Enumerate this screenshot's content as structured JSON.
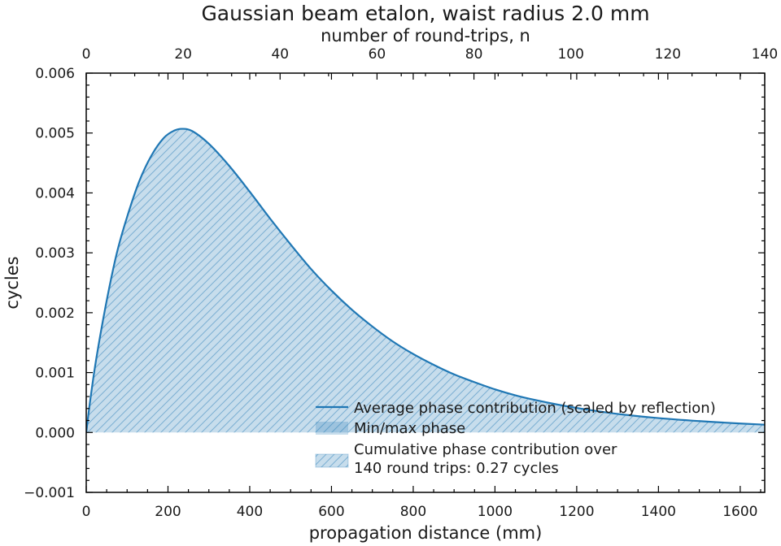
{
  "chart_data": {
    "type": "line",
    "title": "Gaussian beam etalon, waist radius 2.0 mm",
    "xlabel": "propagation distance (mm)",
    "ylabel": "cycles",
    "x2label": "number of round-trips, n",
    "xlim": [
      0,
      1660
    ],
    "ylim": [
      -0.001,
      0.006
    ],
    "x2lim": [
      0,
      140
    ],
    "xticks": [
      "0",
      "200",
      "400",
      "600",
      "800",
      "1000",
      "1200",
      "1400",
      "1600"
    ],
    "x2ticks": [
      "0",
      "20",
      "40",
      "60",
      "80",
      "100",
      "120",
      "140"
    ],
    "yticks": [
      "−0.001",
      "0.000",
      "0.001",
      "0.002",
      "0.003",
      "0.004",
      "0.005",
      "0.006"
    ],
    "grid": false,
    "legend_position": "bottom-right",
    "series": [
      {
        "name": "Average phase contribution (scaled by reflection)",
        "color": "#1f77b4",
        "x": [
          0,
          10,
          25,
          50,
          75,
          100,
          130,
          160,
          190,
          215,
          235,
          260,
          300,
          350,
          400,
          450,
          500,
          550,
          600,
          650,
          700,
          750,
          800,
          850,
          900,
          950,
          1000,
          1050,
          1100,
          1150,
          1200,
          1300,
          1400,
          1500,
          1600,
          1660
        ],
        "y": [
          0,
          0.00055,
          0.00125,
          0.0022,
          0.003,
          0.0036,
          0.0042,
          0.00463,
          0.00492,
          0.00504,
          0.00507,
          0.00503,
          0.00482,
          0.00445,
          0.00402,
          0.00357,
          0.00314,
          0.00273,
          0.00237,
          0.00205,
          0.00177,
          0.00152,
          0.00131,
          0.00113,
          0.00097,
          0.00084,
          0.00072,
          0.00062,
          0.00054,
          0.00047,
          0.00041,
          0.00031,
          0.00024,
          0.00019,
          0.00015,
          0.00013
        ]
      }
    ],
    "fills": [
      {
        "name": "Min/max phase",
        "color": "#1f77b4",
        "alpha": 0.25
      },
      {
        "name": "Cumulative phase contribution over\n140 round trips: 0.27 cycles",
        "color": "#1f77b4",
        "hatch": "diagonal"
      }
    ]
  }
}
